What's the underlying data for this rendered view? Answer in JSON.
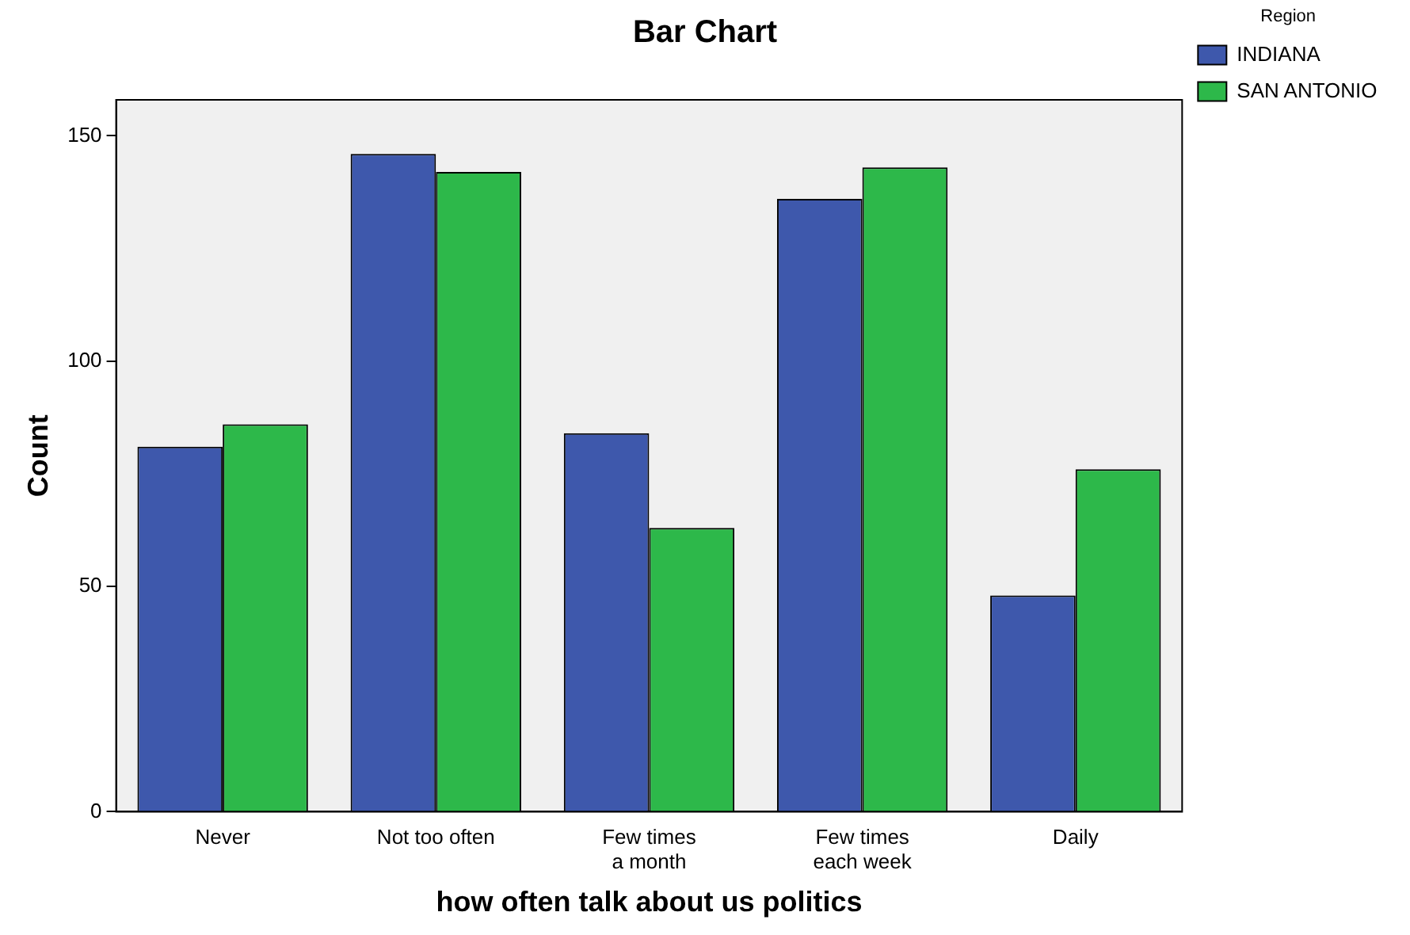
{
  "chart_data": {
    "type": "bar",
    "title": "Bar Chart",
    "xlabel": "how often talk about us politics",
    "ylabel": "Count",
    "legend_title": "Region",
    "categories": [
      "Never",
      "Not too often",
      "Few times a month",
      "Few times each week",
      "Daily"
    ],
    "series": [
      {
        "name": "INDIANA",
        "color": "#3e58ac",
        "values": [
          81,
          146,
          84,
          136,
          48
        ]
      },
      {
        "name": "SAN ANTONIO",
        "color": "#2db84a",
        "values": [
          86,
          142,
          63,
          143,
          76
        ]
      }
    ],
    "ylim": [
      0,
      158
    ],
    "yticks": [
      0,
      50,
      100,
      150
    ],
    "grid": false,
    "legend": "top right"
  }
}
